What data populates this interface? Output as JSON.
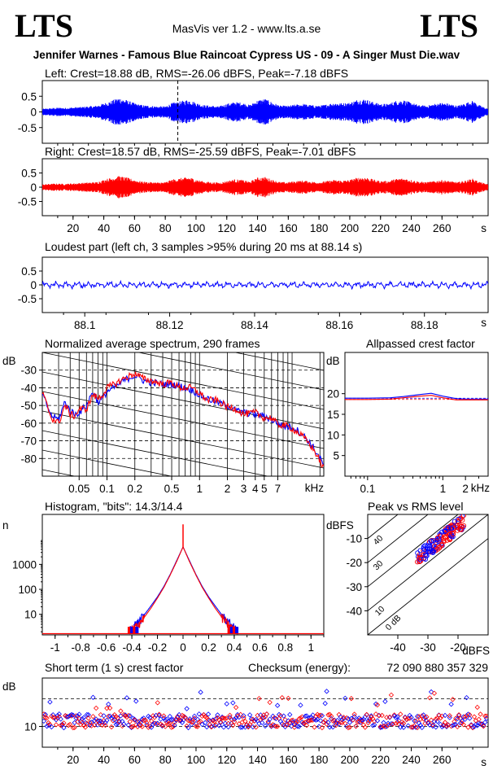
{
  "header": {
    "logo_left": "LTS",
    "logo_right": "LTS",
    "app": "MasVis ver 1.2 - www.lts.a.se",
    "file": "Jennifer Warnes - Famous Blue Raincoat Cypress US - 09 - A Singer Must Die.wav"
  },
  "colors": {
    "left": "#0000ff",
    "right": "#ff0000",
    "grid": "#000000"
  },
  "chart_data": [
    {
      "id": "left",
      "type": "line",
      "title": "Left: Crest=18.88 dB, RMS=-26.06 dBFS, Peak=-7.18 dBFS",
      "ylim": [
        -1,
        1
      ],
      "yticks": [
        0.5,
        0,
        -0.5
      ],
      "ytick_labels": [
        "0.5",
        "0",
        "-0.5"
      ],
      "xlim": [
        0,
        290
      ],
      "marker_x": 88.14,
      "envelope": {
        "x": [
          0,
          5,
          10,
          15,
          20,
          25,
          30,
          35,
          40,
          45,
          50,
          55,
          60,
          65,
          70,
          75,
          80,
          85,
          90,
          95,
          100,
          105,
          110,
          115,
          120,
          125,
          130,
          135,
          140,
          145,
          150,
          155,
          160,
          165,
          170,
          175,
          180,
          185,
          190,
          195,
          200,
          205,
          210,
          215,
          220,
          225,
          230,
          235,
          240,
          245,
          250,
          255,
          260,
          265,
          270,
          275,
          280,
          285,
          290
        ],
        "amp": [
          0.1,
          0.12,
          0.14,
          0.13,
          0.15,
          0.16,
          0.18,
          0.2,
          0.28,
          0.36,
          0.46,
          0.38,
          0.28,
          0.22,
          0.2,
          0.18,
          0.18,
          0.3,
          0.34,
          0.4,
          0.3,
          0.22,
          0.2,
          0.18,
          0.26,
          0.32,
          0.3,
          0.22,
          0.38,
          0.42,
          0.3,
          0.2,
          0.2,
          0.24,
          0.26,
          0.22,
          0.2,
          0.24,
          0.3,
          0.28,
          0.3,
          0.4,
          0.42,
          0.32,
          0.26,
          0.26,
          0.36,
          0.38,
          0.3,
          0.22,
          0.2,
          0.26,
          0.3,
          0.26,
          0.2,
          0.28,
          0.36,
          0.2,
          0.1
        ]
      }
    },
    {
      "id": "right",
      "type": "line",
      "title": "Right: Crest=18.57 dB, RMS=-25.59 dBFS, Peak=-7.01 dBFS",
      "ylim": [
        -1,
        1
      ],
      "yticks": [
        0.5,
        0,
        -0.5
      ],
      "ytick_labels": [
        "0.5",
        "0",
        "-0.5"
      ],
      "xlim": [
        0,
        290
      ],
      "xticks": [
        20,
        40,
        60,
        80,
        100,
        120,
        140,
        160,
        180,
        200,
        220,
        240,
        260
      ],
      "xtick_labels": [
        "20",
        "40",
        "60",
        "80",
        "100",
        "120",
        "140",
        "160",
        "180",
        "200",
        "220",
        "240",
        "260"
      ],
      "xunit": "s",
      "envelope": {
        "x": [
          0,
          5,
          10,
          15,
          20,
          25,
          30,
          35,
          40,
          45,
          50,
          55,
          60,
          65,
          70,
          75,
          80,
          85,
          90,
          95,
          100,
          105,
          110,
          115,
          120,
          125,
          130,
          135,
          140,
          145,
          150,
          155,
          160,
          165,
          170,
          175,
          180,
          185,
          190,
          195,
          200,
          205,
          210,
          215,
          220,
          225,
          230,
          235,
          240,
          245,
          250,
          255,
          260,
          265,
          270,
          275,
          280,
          285,
          290
        ],
        "amp": [
          0.1,
          0.12,
          0.13,
          0.12,
          0.14,
          0.15,
          0.17,
          0.18,
          0.26,
          0.34,
          0.4,
          0.34,
          0.26,
          0.2,
          0.18,
          0.17,
          0.18,
          0.28,
          0.32,
          0.36,
          0.28,
          0.2,
          0.18,
          0.16,
          0.22,
          0.28,
          0.26,
          0.2,
          0.34,
          0.36,
          0.26,
          0.18,
          0.18,
          0.22,
          0.24,
          0.2,
          0.18,
          0.22,
          0.26,
          0.24,
          0.26,
          0.34,
          0.36,
          0.28,
          0.22,
          0.22,
          0.3,
          0.32,
          0.26,
          0.2,
          0.18,
          0.22,
          0.26,
          0.22,
          0.18,
          0.24,
          0.3,
          0.18,
          0.1
        ]
      }
    },
    {
      "id": "loudest",
      "type": "line",
      "title": "Loudest part (left  ch, 3 samples >95% during 20 ms at 88.14 s)",
      "ylim": [
        -1,
        1
      ],
      "yticks": [
        0.5,
        0,
        -0.5
      ],
      "ytick_labels": [
        "0.5",
        "0",
        "-0.5"
      ],
      "xlim": [
        88.09,
        88.195
      ],
      "xticks": [
        88.1,
        88.12,
        88.14,
        88.16,
        88.18
      ],
      "xtick_labels": [
        "88.1",
        "88.12",
        "88.14",
        "88.16",
        "88.18"
      ],
      "xunit": "s",
      "amplitude": 0.12
    },
    {
      "id": "spectrum",
      "type": "line",
      "title": "Normalized average spectrum, 290 frames",
      "ylabel": "dB",
      "ylim": [
        -90,
        -20
      ],
      "yticks": [
        -30,
        -40,
        -50,
        -60,
        -70,
        -80
      ],
      "ytick_labels": [
        "-30",
        "-40",
        "-50",
        "-60",
        "-70",
        "-80"
      ],
      "xscale": "log",
      "xlim": [
        0.02,
        22
      ],
      "xticks": [
        0.05,
        0.1,
        0.2,
        0.5,
        1,
        2,
        3,
        4,
        5,
        7
      ],
      "xtick_labels": [
        "0.05",
        "0.1",
        "0.2",
        "0.5",
        "1",
        "2",
        "3",
        "4",
        "5",
        "7"
      ],
      "xunit": "kHz",
      "series": [
        {
          "color": "left",
          "x": [
            0.02,
            0.025,
            0.03,
            0.035,
            0.04,
            0.045,
            0.05,
            0.06,
            0.07,
            0.08,
            0.09,
            0.1,
            0.12,
            0.15,
            0.18,
            0.2,
            0.25,
            0.3,
            0.4,
            0.5,
            0.6,
            0.8,
            1,
            1.2,
            1.5,
            2,
            2.5,
            3,
            4,
            5,
            6,
            7,
            8,
            10,
            12,
            15,
            18,
            22
          ],
          "y": [
            -44,
            -56,
            -58,
            -48,
            -53,
            -55,
            -54,
            -50,
            -42,
            -48,
            -46,
            -42,
            -40,
            -36,
            -34,
            -33,
            -36,
            -37,
            -38,
            -38,
            -39,
            -41,
            -44,
            -46,
            -48,
            -50,
            -53,
            -54,
            -55,
            -56,
            -58,
            -60,
            -62,
            -62,
            -65,
            -70,
            -76,
            -84
          ]
        },
        {
          "color": "right",
          "x": [
            0.02,
            0.025,
            0.03,
            0.035,
            0.04,
            0.045,
            0.05,
            0.06,
            0.07,
            0.08,
            0.09,
            0.1,
            0.12,
            0.15,
            0.18,
            0.2,
            0.25,
            0.3,
            0.4,
            0.5,
            0.6,
            0.8,
            1,
            1.2,
            1.5,
            2,
            2.5,
            3,
            4,
            5,
            6,
            7,
            8,
            10,
            12,
            15,
            18,
            22
          ],
          "y": [
            -43,
            -57,
            -60,
            -50,
            -55,
            -56,
            -52,
            -52,
            -44,
            -46,
            -44,
            -40,
            -38,
            -35,
            -33,
            -32,
            -35,
            -36,
            -38,
            -37,
            -40,
            -40,
            -43,
            -47,
            -47,
            -51,
            -52,
            -55,
            -54,
            -57,
            -57,
            -61,
            -61,
            -63,
            -66,
            -71,
            -77,
            -86
          ]
        }
      ]
    },
    {
      "id": "allpass",
      "type": "line",
      "title": "Allpassed crest factor",
      "ylabel": "dB",
      "ylim": [
        0,
        30
      ],
      "yticks": [
        20,
        15,
        10,
        5
      ],
      "ytick_labels": [
        "20",
        "15",
        "10",
        "5"
      ],
      "xscale": "log",
      "xlim": [
        0.05,
        4
      ],
      "xticks": [
        0.1,
        1,
        2
      ],
      "xtick_labels": [
        "0.1",
        "1",
        "2"
      ],
      "xunit": "kHz",
      "series": [
        {
          "color": "left",
          "x": [
            0.05,
            0.1,
            0.2,
            0.3,
            0.5,
            0.7,
            1,
            1.5,
            2,
            3,
            4
          ],
          "y": [
            18.9,
            18.9,
            19.0,
            19.3,
            19.8,
            20.1,
            19.4,
            18.8,
            18.7,
            18.7,
            18.7
          ]
        },
        {
          "color": "right",
          "x": [
            0.05,
            0.1,
            0.2,
            0.3,
            0.5,
            0.7,
            1,
            1.5,
            2,
            3,
            4
          ],
          "y": [
            18.6,
            18.6,
            18.7,
            19.0,
            19.4,
            19.6,
            19.0,
            18.5,
            18.5,
            18.5,
            18.5
          ]
        }
      ]
    },
    {
      "id": "histogram",
      "type": "line",
      "title": "Histogram, \"bits\": 14.3/14.4",
      "ylabel": "n",
      "yscale": "log",
      "ylim": [
        1.5,
        100000
      ],
      "yticks": [
        1000,
        100,
        10
      ],
      "ytick_labels": [
        "1000",
        "100",
        "10"
      ],
      "xlim": [
        -1.1,
        1.1
      ],
      "xticks": [
        -1,
        -0.8,
        -0.6,
        -0.4,
        -0.2,
        0,
        0.2,
        0.4,
        0.6,
        0.8,
        1
      ],
      "xtick_labels": [
        "-1",
        "-0.8",
        "-0.6",
        "-0.4",
        "-0.2",
        "0",
        "0.2",
        "0.4",
        "0.6",
        "0.8",
        "1"
      ],
      "series": [
        {
          "color": "left",
          "x": [
            -0.43,
            -0.4,
            -0.35,
            -0.3,
            -0.25,
            -0.2,
            -0.15,
            -0.1,
            -0.05,
            0,
            0.05,
            0.1,
            0.15,
            0.2,
            0.25,
            0.3,
            0.35,
            0.4,
            0.43
          ],
          "y": [
            2,
            3,
            5,
            10,
            22,
            50,
            130,
            400,
            1400,
            5000,
            1400,
            400,
            130,
            50,
            22,
            10,
            5,
            3,
            2
          ]
        },
        {
          "color": "right",
          "x": [
            -0.43,
            -0.4,
            -0.35,
            -0.3,
            -0.25,
            -0.2,
            -0.15,
            -0.1,
            -0.05,
            0,
            0.05,
            0.1,
            0.15,
            0.2,
            0.25,
            0.3,
            0.35,
            0.4,
            0.43
          ],
          "y": [
            2,
            2.5,
            4,
            8,
            18,
            45,
            120,
            380,
            1300,
            5000,
            1300,
            380,
            120,
            45,
            18,
            8,
            4,
            2.5,
            2
          ]
        }
      ]
    },
    {
      "id": "peak_vs_rms",
      "type": "scatter",
      "title": "Peak vs RMS level",
      "ylabel": "dBFS",
      "xunit": "dBFS",
      "xlim": [
        -50,
        -10
      ],
      "ylim": [
        -50,
        0
      ],
      "yticks": [
        -10,
        -20,
        -30,
        -40
      ],
      "ytick_labels": [
        "-10",
        "-20",
        "-30",
        "-40"
      ],
      "xticks": [
        -40,
        -30,
        -20
      ],
      "xtick_labels": [
        "-40",
        "-30",
        "-20"
      ],
      "crest_lines": [
        0,
        10,
        20,
        30,
        40
      ],
      "crest_labels": [
        "0 dB",
        "10",
        "20",
        "30",
        "40"
      ]
    },
    {
      "id": "short_crest",
      "type": "scatter",
      "title": "Short term (1 s) crest factor",
      "checksum_label": "Checksum (energy):",
      "checksum_value": "72 090 880 357 329",
      "ylabel": "dB",
      "ylim": [
        4,
        24
      ],
      "yticks": [
        10
      ],
      "ytick_labels": [
        "10"
      ],
      "dashed_levels": [
        10,
        18
      ],
      "xlim": [
        0,
        290
      ],
      "xticks": [
        20,
        40,
        60,
        80,
        100,
        120,
        140,
        160,
        180,
        200,
        220,
        240,
        260
      ],
      "xtick_labels": [
        "20",
        "40",
        "60",
        "80",
        "100",
        "120",
        "140",
        "160",
        "180",
        "200",
        "220",
        "240",
        "260"
      ],
      "xunit": "s"
    }
  ]
}
